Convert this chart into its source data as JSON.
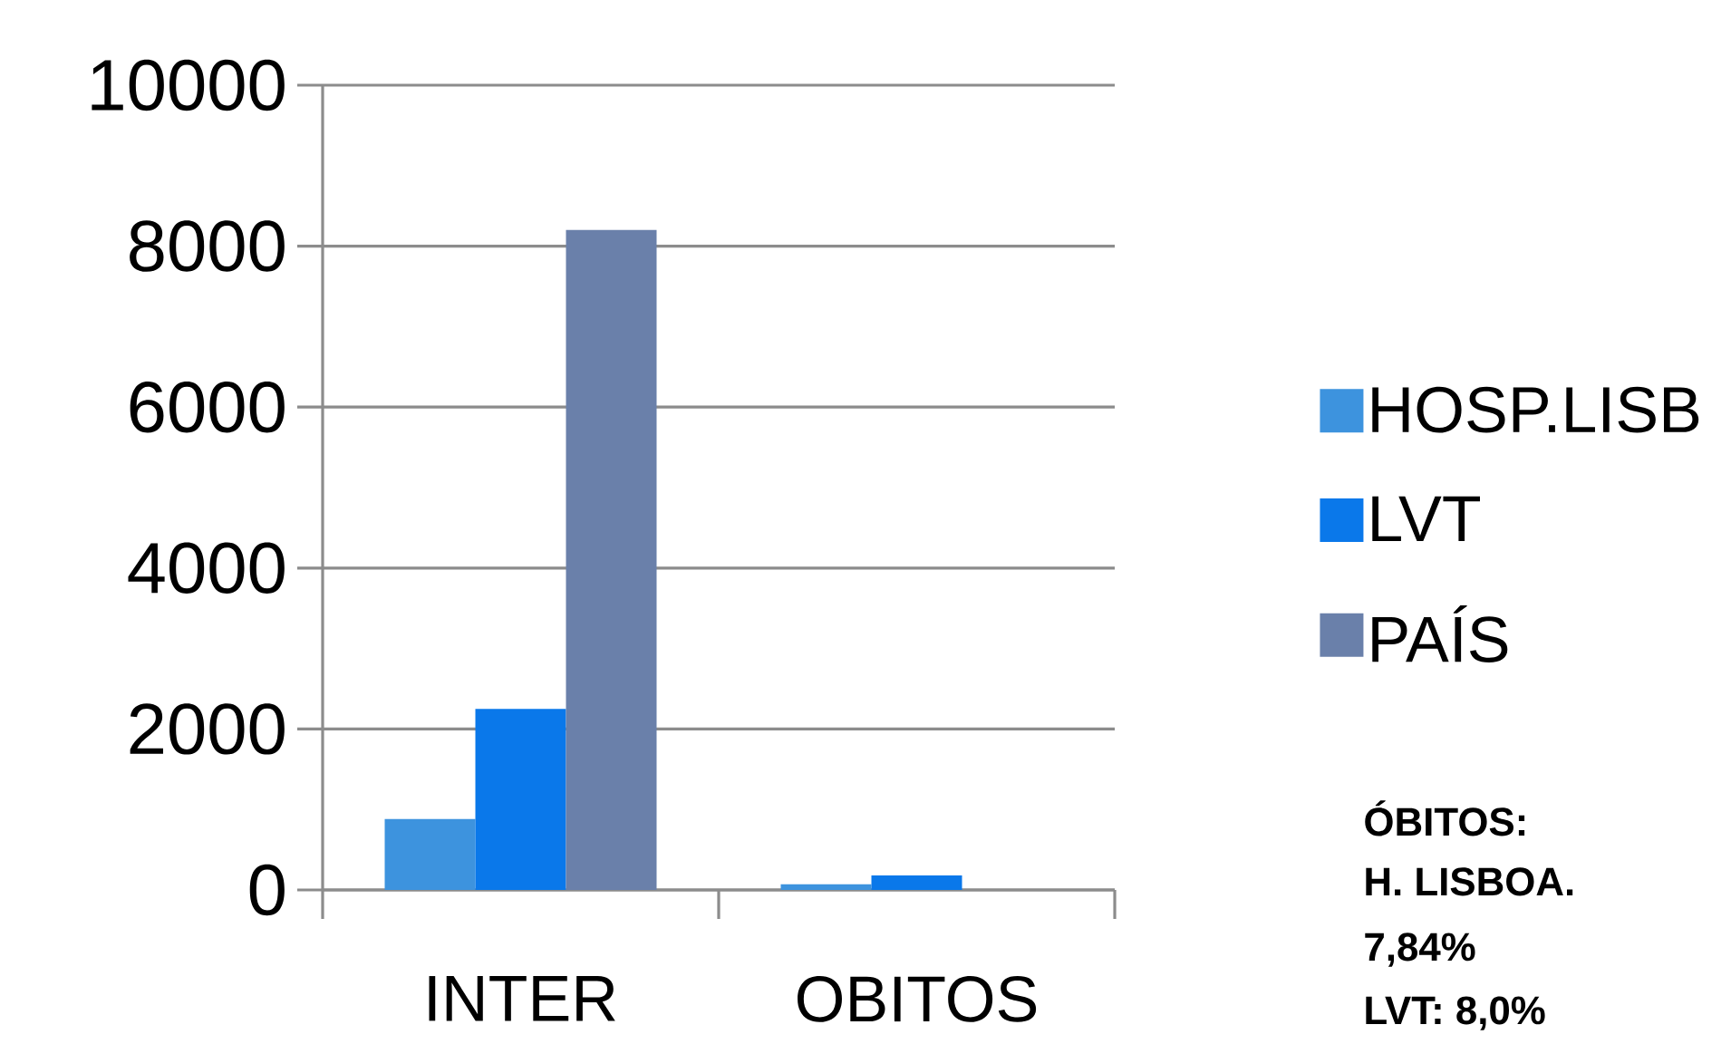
{
  "chart_data": {
    "type": "bar",
    "categories": [
      "INTER",
      "OBITOS"
    ],
    "series": [
      {
        "name": "HOSP.LISB",
        "color": "#3d93de",
        "values": [
          880,
          70
        ]
      },
      {
        "name": "LVT",
        "color": "#0a78ea",
        "values": [
          2250,
          180
        ]
      },
      {
        "name": "PAÍS",
        "color": "#6a80aa",
        "values": [
          8200,
          0
        ]
      }
    ],
    "ylim": [
      0,
      10000
    ],
    "yticks": [
      0,
      2000,
      4000,
      6000,
      8000,
      10000
    ],
    "grid": "y",
    "legend": "right",
    "annotations": [
      "ÓBITOS:",
      "H. LISBOA.",
      "7,84%",
      "LVT: 8,0%"
    ]
  }
}
